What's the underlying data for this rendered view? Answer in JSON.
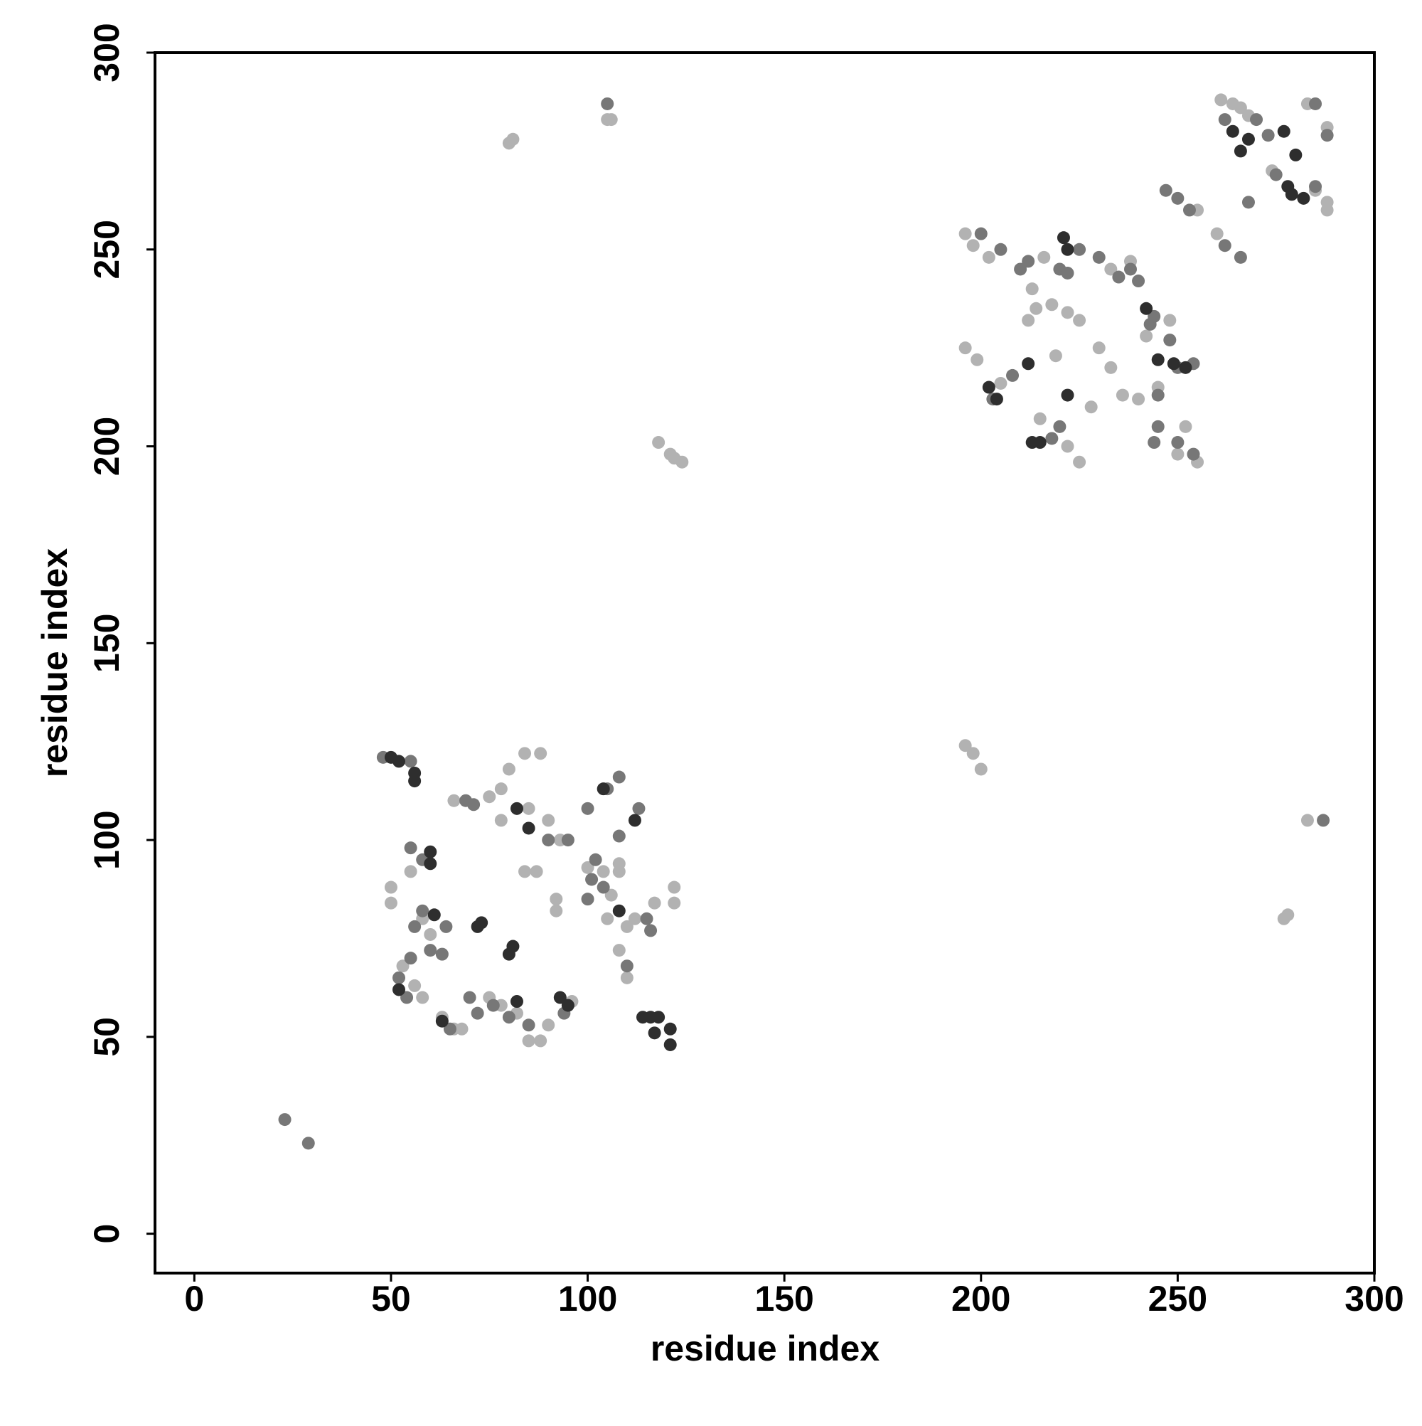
{
  "chart_data": {
    "type": "scatter",
    "xlabel": "residue index",
    "ylabel": "residue index",
    "xlim": [
      -10,
      300
    ],
    "ylim": [
      -10,
      300
    ],
    "xticks": [
      0,
      50,
      100,
      150,
      200,
      250,
      300
    ],
    "yticks": [
      0,
      50,
      100,
      150,
      200,
      250,
      300
    ],
    "grid": false,
    "series": [
      {
        "color": "#b2b2b2",
        "x": [
          80,
          81,
          105,
          106,
          118,
          121,
          122,
          124,
          196,
          198,
          200,
          277,
          278,
          283,
          50,
          50,
          55,
          56,
          58,
          53,
          58,
          60,
          63,
          66,
          68,
          66,
          75,
          78,
          80,
          84,
          88,
          78,
          84,
          87,
          85,
          90,
          93,
          92,
          92,
          100,
          104,
          108,
          108,
          110,
          112,
          110,
          108,
          117,
          122,
          122,
          85,
          88,
          90,
          78,
          75,
          96,
          105,
          106,
          82,
          196,
          198,
          202,
          196,
          199,
          205,
          213,
          214,
          216,
          218,
          222,
          225,
          230,
          233,
          236,
          240,
          245,
          248,
          242,
          252,
          250,
          255,
          215,
          222,
          225,
          228,
          233,
          238,
          261,
          264,
          266,
          283,
          288,
          285,
          288,
          288,
          255,
          260,
          274,
          268,
          212,
          219
        ],
        "y": [
          277,
          278,
          283,
          283,
          201,
          198,
          197,
          196,
          124,
          122,
          118,
          80,
          81,
          105,
          88,
          84,
          92,
          63,
          60,
          68,
          80,
          76,
          55,
          52,
          52,
          110,
          111,
          113,
          118,
          122,
          122,
          105,
          92,
          92,
          108,
          105,
          100,
          85,
          82,
          93,
          92,
          94,
          92,
          78,
          80,
          65,
          72,
          84,
          88,
          84,
          49,
          49,
          53,
          58,
          60,
          59,
          80,
          86,
          56,
          254,
          251,
          248,
          225,
          222,
          216,
          240,
          235,
          248,
          236,
          234,
          232,
          225,
          220,
          213,
          212,
          215,
          232,
          228,
          205,
          198,
          196,
          207,
          200,
          196,
          210,
          245,
          247,
          288,
          287,
          286,
          287,
          281,
          265,
          262,
          260,
          260,
          254,
          270,
          284,
          232,
          223
        ]
      },
      {
        "color": "#777777",
        "x": [
          23,
          29,
          105,
          287,
          48,
          55,
          55,
          58,
          58,
          56,
          55,
          60,
          63,
          64,
          52,
          54,
          65,
          70,
          72,
          76,
          80,
          90,
          95,
          100,
          102,
          100,
          105,
          108,
          108,
          113,
          115,
          116,
          110,
          94,
          85,
          69,
          71,
          101,
          104,
          200,
          205,
          210,
          212,
          220,
          225,
          230,
          235,
          240,
          243,
          248,
          250,
          254,
          245,
          244,
          250,
          254,
          245,
          220,
          218,
          203,
          208,
          247,
          250,
          253,
          262,
          266,
          285,
          288,
          275,
          285,
          262,
          270,
          273,
          268,
          222,
          238,
          244
        ],
        "y": [
          29,
          23,
          287,
          105,
          121,
          120,
          98,
          95,
          82,
          78,
          70,
          72,
          71,
          78,
          65,
          60,
          52,
          60,
          56,
          58,
          55,
          100,
          100,
          85,
          95,
          108,
          113,
          116,
          101,
          108,
          80,
          77,
          68,
          56,
          53,
          110,
          109,
          90,
          88,
          254,
          250,
          245,
          247,
          245,
          250,
          248,
          243,
          242,
          231,
          227,
          220,
          221,
          213,
          201,
          201,
          198,
          205,
          205,
          202,
          212,
          218,
          265,
          263,
          260,
          251,
          248,
          287,
          279,
          269,
          266,
          283,
          283,
          279,
          262,
          244,
          245,
          233
        ]
      },
      {
        "color": "#2e2e2e",
        "x": [
          50,
          52,
          56,
          56,
          60,
          60,
          61,
          73,
          72,
          81,
          80,
          82,
          85,
          93,
          95,
          104,
          108,
          112,
          114,
          116,
          118,
          117,
          121,
          121,
          63,
          52,
          82,
          264,
          268,
          277,
          280,
          278,
          282,
          212,
          222,
          202,
          204,
          213,
          215,
          221,
          222,
          249,
          252,
          245,
          242,
          279,
          266
        ],
        "y": [
          121,
          120,
          117,
          115,
          94,
          97,
          81,
          79,
          78,
          73,
          71,
          108,
          103,
          60,
          58,
          113,
          82,
          105,
          55,
          55,
          55,
          51,
          52,
          48,
          54,
          62,
          59,
          280,
          278,
          280,
          274,
          266,
          263,
          221,
          213,
          215,
          212,
          201,
          201,
          253,
          250,
          221,
          220,
          222,
          235,
          264,
          275
        ]
      }
    ]
  }
}
